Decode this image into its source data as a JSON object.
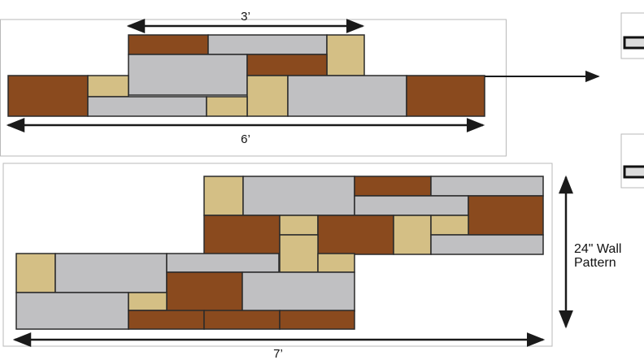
{
  "colors": {
    "brown": "#8a4a1e",
    "tan": "#d4bf85",
    "gray": "#c0c0c2",
    "outline": "#2a2a2a",
    "panel_border": "#b9b9b9",
    "arrow": "#1a1a1a"
  },
  "labels": {
    "top_width": "3’",
    "top_total_width": "6’",
    "bottom_width": "7’",
    "wall_height_line1": "24\" Wall",
    "wall_height_line2": "Pattern"
  },
  "top_pattern": {
    "stones": [
      {
        "color": "brown"
      },
      {
        "color": "gray"
      },
      {
        "color": "tan"
      },
      {
        "color": "gray"
      },
      {
        "color": "brown"
      },
      {
        "color": "brown"
      },
      {
        "color": "tan"
      },
      {
        "color": "tan"
      },
      {
        "color": "gray"
      },
      {
        "color": "brown"
      },
      {
        "color": "gray"
      },
      {
        "color": "tan"
      }
    ]
  },
  "bottom_pattern": {
    "stones": [
      {
        "color": "tan"
      },
      {
        "color": "gray"
      },
      {
        "color": "brown"
      },
      {
        "color": "gray"
      },
      {
        "color": "gray"
      },
      {
        "color": "brown"
      },
      {
        "color": "brown"
      },
      {
        "color": "tan"
      },
      {
        "color": "brown"
      },
      {
        "color": "tan"
      },
      {
        "color": "tan"
      },
      {
        "color": "tan"
      },
      {
        "color": "gray"
      },
      {
        "color": "tan"
      },
      {
        "color": "gray"
      },
      {
        "color": "gray"
      },
      {
        "color": "tan"
      },
      {
        "color": "brown"
      },
      {
        "color": "gray"
      },
      {
        "color": "gray"
      },
      {
        "color": "tan"
      },
      {
        "color": "brown"
      },
      {
        "color": "brown"
      },
      {
        "color": "brown"
      }
    ]
  },
  "side_icons": [
    {
      "name": "stone-tile-icon"
    },
    {
      "name": "stone-tile-icon"
    }
  ]
}
